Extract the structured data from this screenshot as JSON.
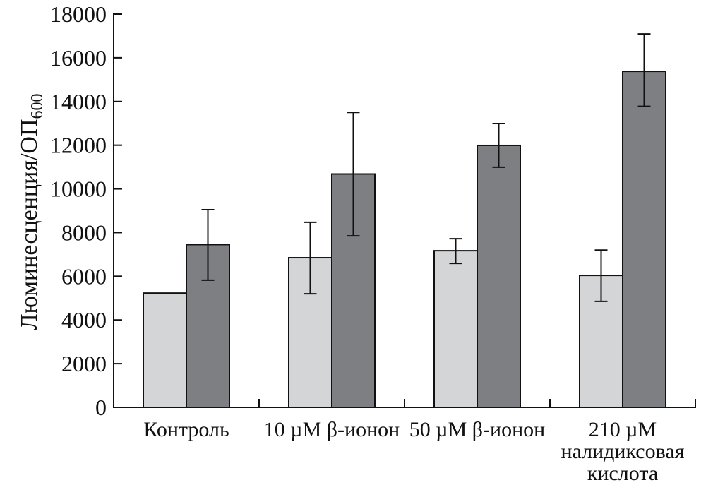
{
  "chart_data": {
    "type": "bar",
    "title": "",
    "xlabel": "",
    "ylabel": "Люминесценция/ОП",
    "ylabel_sub": "600",
    "ylim": [
      0,
      18000
    ],
    "yticks": [
      "0",
      "2000",
      "4000",
      "6000",
      "8000",
      "10000",
      "12000",
      "14000",
      "16000",
      "18000"
    ],
    "grid": false,
    "categories": [
      [
        "Контроль"
      ],
      [
        "10 µM β-ионон"
      ],
      [
        "50 µM β-ионон"
      ],
      [
        "210 µM",
        "налидиксовая",
        "кислота"
      ]
    ],
    "series": [
      {
        "name": "series-light",
        "color": "#d4d5d7",
        "values": [
          5230,
          6850,
          7170,
          6040
        ],
        "err_high": [
          null,
          8470,
          7720,
          7200
        ],
        "err_low": [
          null,
          5200,
          6590,
          4850
        ]
      },
      {
        "name": "series-dark",
        "color": "#7e7f83",
        "values": [
          7450,
          10680,
          11990,
          15380
        ],
        "err_high": [
          9050,
          13500,
          12990,
          17090
        ],
        "err_low": [
          5820,
          7850,
          10990,
          13780
        ]
      }
    ]
  }
}
